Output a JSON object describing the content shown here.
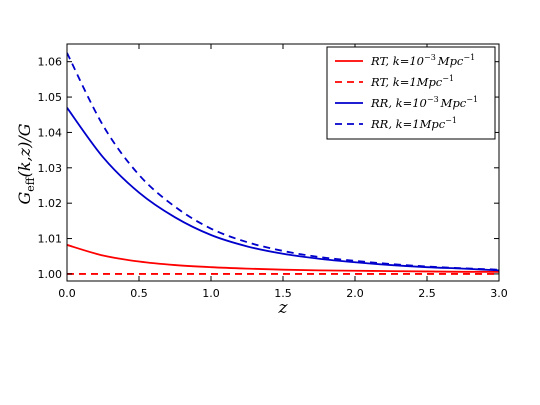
{
  "chart_data": {
    "type": "line",
    "xlabel": "z",
    "ylabel_main": "G",
    "ylabel_sub": "eff",
    "ylabel_rest": "(k,z)/G",
    "xlim": [
      0,
      3
    ],
    "ylim": [
      0.998,
      1.065
    ],
    "xticks": [
      "0.0",
      "0.5",
      "1.0",
      "1.5",
      "2.0",
      "2.5",
      "3.0"
    ],
    "yticks": [
      "1.00",
      "1.01",
      "1.02",
      "1.03",
      "1.04",
      "1.05",
      "1.06"
    ],
    "grid": false,
    "legend_position": "top-right",
    "x": [
      0.0,
      0.25,
      0.5,
      0.75,
      1.0,
      1.25,
      1.5,
      1.75,
      2.0,
      2.25,
      2.5,
      2.75,
      3.0
    ],
    "series": [
      {
        "name": "RT, k=10^{-3} Mpc^{-1}",
        "legend_main": "RT, k=10",
        "legend_sup": "−3",
        "legend_unit": "Mpc",
        "legend_unit_sup": "−1",
        "color": "#ff0000",
        "dash": "solid",
        "values": [
          1.0082,
          1.0052,
          1.0035,
          1.0025,
          1.0019,
          1.0015,
          1.0012,
          1.001,
          1.0009,
          1.0008,
          1.0007,
          1.0006,
          1.0006
        ]
      },
      {
        "name": "RT, k=1Mpc^{-1}",
        "legend_main": "RT, k=1",
        "legend_sup": "",
        "legend_unit": "Mpc",
        "legend_unit_sup": "−1",
        "color": "#ff0000",
        "dash": "dashed",
        "values": [
          1.0,
          1.0,
          1.0,
          1.0,
          1.0,
          1.0,
          1.0,
          1.0,
          1.0,
          1.0,
          1.0,
          1.0,
          1.0
        ]
      },
      {
        "name": "RR, k=10^{-3} Mpc^{-1}",
        "legend_main": "RR, k=10",
        "legend_sup": "−3",
        "legend_unit": "Mpc",
        "legend_unit_sup": "−1",
        "color": "#0000cc",
        "dash": "solid",
        "values": [
          1.047,
          1.033,
          1.023,
          1.016,
          1.011,
          1.0078,
          1.0057,
          1.0043,
          1.0033,
          1.0025,
          1.0019,
          1.0015,
          1.001
        ]
      },
      {
        "name": "RR, k=1Mpc^{-1}",
        "legend_main": "RR, k=1",
        "legend_sup": "",
        "legend_unit": "Mpc",
        "legend_unit_sup": "−1",
        "color": "#0000cc",
        "dash": "dashed",
        "values": [
          1.0625,
          1.042,
          1.028,
          1.019,
          1.0128,
          1.009,
          1.0065,
          1.0048,
          1.0037,
          1.0028,
          1.0021,
          1.0016,
          1.0012
        ]
      }
    ]
  }
}
